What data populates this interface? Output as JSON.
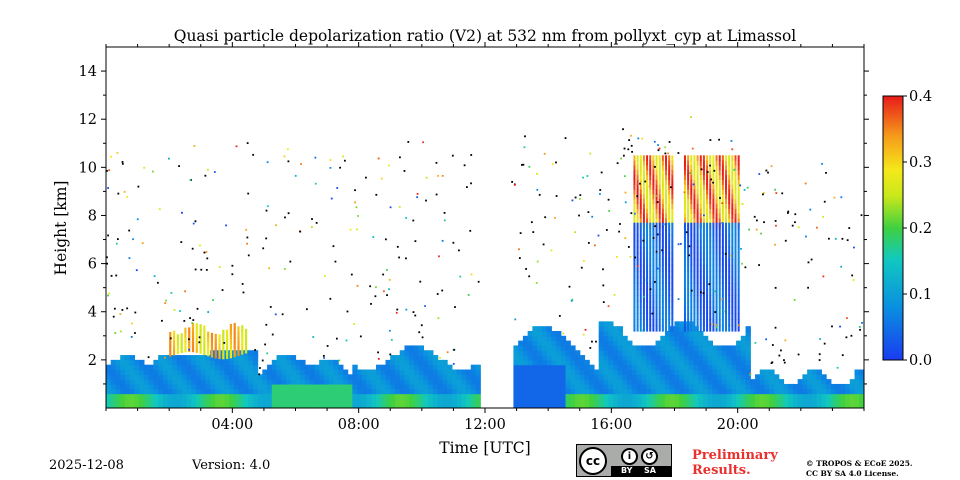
{
  "chart_data": {
    "type": "heatmap",
    "title": "Quasi particle depolarization ratio (V2) at 532 nm from pollyxt_cyp at Limassol",
    "xlabel": "Time [UTC]",
    "ylabel": "Height [km]",
    "xlim": [
      0,
      24
    ],
    "ylim": [
      0,
      15
    ],
    "x_ticks": [
      4,
      8,
      12,
      16,
      20
    ],
    "x_tick_labels": [
      "04:00",
      "08:00",
      "12:00",
      "16:00",
      "20:00"
    ],
    "y_ticks": [
      2,
      4,
      6,
      8,
      10,
      12,
      14
    ],
    "y_tick_labels": [
      "2",
      "4",
      "6",
      "8",
      "10",
      "12",
      "14"
    ],
    "colorbar": {
      "range": [
        0.0,
        0.4
      ],
      "ticks": [
        0.0,
        0.1,
        0.2,
        0.3,
        0.4
      ],
      "tick_labels": [
        "0.0",
        "0.1",
        "0.2",
        "0.3",
        "0.4"
      ],
      "colormap": "jet"
    },
    "features": [
      {
        "name": "boundary layer",
        "t_start": 0.0,
        "t_end": 24.0,
        "top_km": 2.3,
        "typical_value": 0.08
      },
      {
        "name": "dust layer",
        "t_start": 2.0,
        "t_end": 4.5,
        "top_km": 3.2,
        "typical_value": 0.3
      },
      {
        "name": "cirrus cloud",
        "t_start": 16.7,
        "t_end": 20.1,
        "bottom_km": 7.5,
        "top_km": 10.3,
        "typical_value": 0.33
      },
      {
        "name": "no data gap",
        "t_start": 11.8,
        "t_end": 12.8
      }
    ]
  },
  "footer": {
    "date": "2025-12-08",
    "version": "Version: 4.0",
    "preliminary": [
      "Preliminary",
      "Results."
    ],
    "copyright": [
      "© TROPOS & ECoE 2025.",
      "CC BY SA 4.0 License."
    ],
    "cc_badge": {
      "cc": "cc",
      "by": "BY",
      "sa": "SA",
      "by_icon": "i",
      "sa_icon": "↺"
    }
  }
}
